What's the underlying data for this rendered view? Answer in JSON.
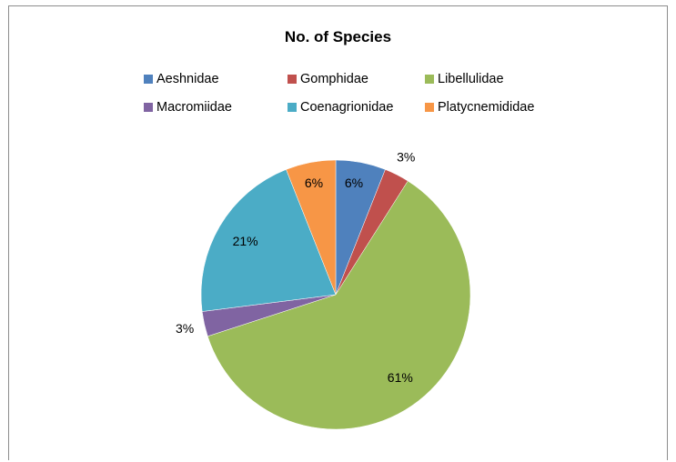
{
  "chart_data": {
    "type": "pie",
    "title": "No. of Species",
    "categories": [
      "Aeshnidae",
      "Gomphidae",
      "Libellulidae",
      "Macromiidae",
      "Coenagrionidae",
      "Platycnemididae"
    ],
    "values": [
      6,
      3,
      61,
      3,
      21,
      6
    ],
    "labels": [
      "6%",
      "3%",
      "61%",
      "3%",
      "21%",
      "6%"
    ],
    "colors": [
      "#4f81bd",
      "#c0504d",
      "#9bbb59",
      "#8064a2",
      "#4bacc6",
      "#f79646"
    ],
    "legend_position": "top",
    "start_angle": "12 o'clock",
    "direction": "clockwise"
  }
}
